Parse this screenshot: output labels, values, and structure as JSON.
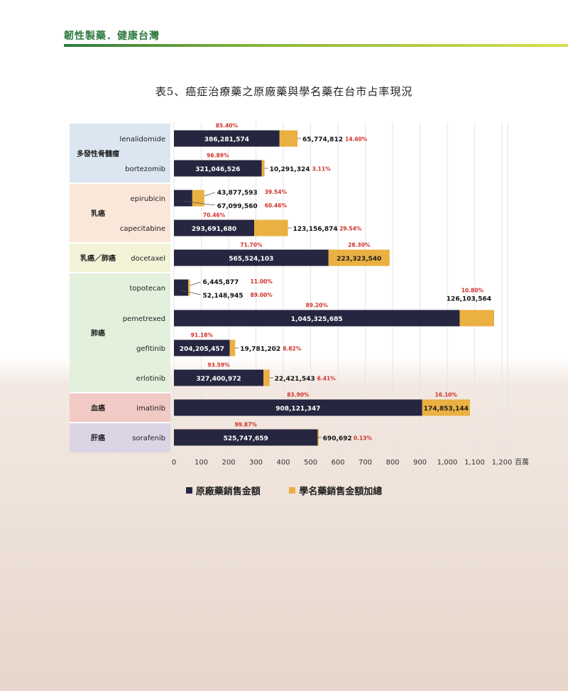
{
  "header": {
    "title": "韌性製藥．健康台灣"
  },
  "title": "表5、癌症治療藥之原廠藥與學名藥在台市占率現況",
  "chart_data": {
    "type": "bar",
    "orientation": "horizontal",
    "stacked": true,
    "unit": "百萬",
    "xlim": [
      0,
      1200
    ],
    "x_ticks": [
      "0",
      "100",
      "200",
      "300",
      "400",
      "500",
      "600",
      "700",
      "800",
      "900",
      "1,000",
      "1,100",
      "1,200"
    ],
    "series": [
      {
        "name": "原廠藥銷售金額",
        "color": "#272640"
      },
      {
        "name": "學名藥銷售金額加總",
        "color": "#ebb042"
      }
    ],
    "groups": [
      {
        "label": "多發性骨髓瘤",
        "color": "#dbe6f1",
        "items": [
          {
            "drug": "lenalidomide",
            "orig": 386281574,
            "orig_label": "386,281,574",
            "orig_pct": "85.40%",
            "gen": 65774812,
            "gen_label": "65,774,812",
            "gen_pct": "14.60%"
          },
          {
            "drug": "bortezomib",
            "orig": 321046526,
            "orig_label": "321,046,526",
            "orig_pct": "96.89%",
            "gen": 10291324,
            "gen_label": "10,291,324",
            "gen_pct": "3.11%"
          }
        ]
      },
      {
        "label": "乳癌",
        "color": "#fbe6da",
        "items": [
          {
            "drug": "epirubicin",
            "orig": 67099560,
            "orig_label": "67,099,560",
            "orig_pct": "60.46%",
            "gen": 43877593,
            "gen_label": "43,877,593",
            "gen_pct": "39.54%"
          },
          {
            "drug": "capecitabine",
            "orig": 293691680,
            "orig_label": "293,691,680",
            "orig_pct": "70.46%",
            "gen": 123156874,
            "gen_label": "123,156,874",
            "gen_pct": "29.54%"
          }
        ]
      },
      {
        "label": "乳癌／肺癌",
        "color": "#f3f3d8",
        "items": [
          {
            "drug": "docetaxel",
            "orig": 565524103,
            "orig_label": "565,524,103",
            "orig_pct": "71.70%",
            "gen": 223323540,
            "gen_label": "223,323,540",
            "gen_pct": "28.30%"
          }
        ]
      },
      {
        "label": "肺癌",
        "color": "#e3f0dc",
        "items": [
          {
            "drug": "topotecan",
            "orig": 52148945,
            "orig_label": "52,148,945",
            "orig_pct": "89.00%",
            "gen": 6445877,
            "gen_label": "6,445,877",
            "gen_pct": "11.00%"
          },
          {
            "drug": "pemetrexed",
            "orig": 1045325685,
            "orig_label": "1,045,325,685",
            "orig_pct": "89.20%",
            "gen": 126103564,
            "gen_label": "126,103,564",
            "gen_pct": "10.80%"
          },
          {
            "drug": "gefitinib",
            "orig": 204205457,
            "orig_label": "204,205,457",
            "orig_pct": "91.18%",
            "gen": 19781202,
            "gen_label": "19,781,202",
            "gen_pct": "8.82%"
          },
          {
            "drug": "erlotinib",
            "orig": 327400972,
            "orig_label": "327,400,972",
            "orig_pct": "93.59%",
            "gen": 22421543,
            "gen_label": "22,421,543",
            "gen_pct": "6.41%"
          }
        ]
      },
      {
        "label": "血癌",
        "color": "#f1c9c5",
        "items": [
          {
            "drug": "imatinib",
            "orig": 908121347,
            "orig_label": "908,121,347",
            "orig_pct": "83.90%",
            "gen": 174853144,
            "gen_label": "174,853,144",
            "gen_pct": "16.10%"
          }
        ]
      },
      {
        "label": "肝癌",
        "color": "#dad4e5",
        "items": [
          {
            "drug": "sorafenib",
            "orig": 525747659,
            "orig_label": "525,747,659",
            "orig_pct": "99.87%",
            "gen": 690692,
            "gen_label": "690,692",
            "gen_pct": "0.13%"
          }
        ]
      }
    ]
  }
}
